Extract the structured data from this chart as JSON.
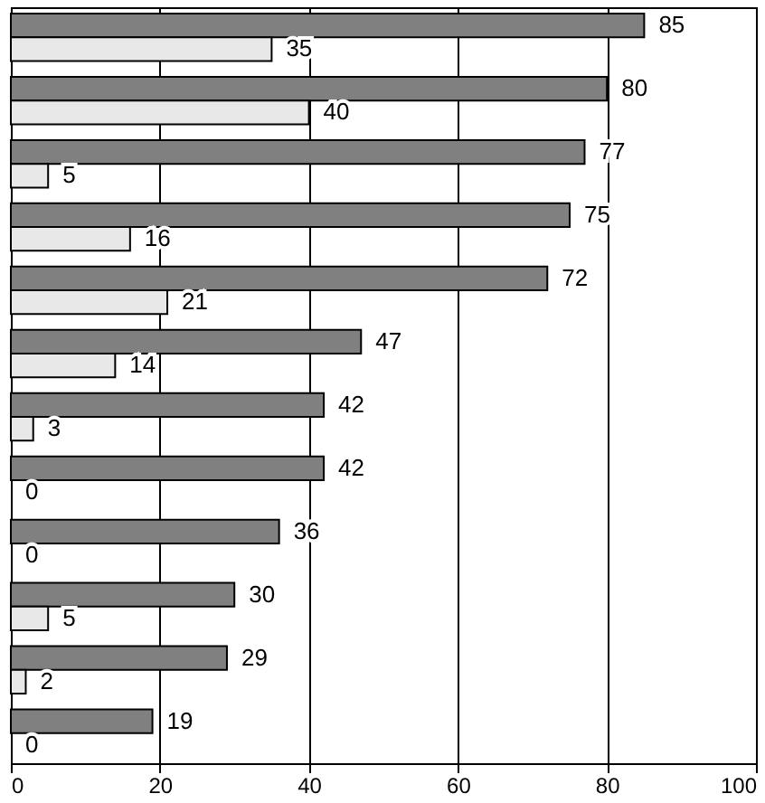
{
  "chart_data": {
    "type": "bar",
    "orientation": "horizontal",
    "categories": [
      null,
      null,
      null,
      null,
      null,
      null,
      null,
      null,
      null,
      null,
      null,
      null
    ],
    "series": [
      {
        "color": "#808080",
        "values": [
          85,
          80,
          77,
          75,
          72,
          47,
          42,
          42,
          36,
          30,
          29,
          19
        ]
      },
      {
        "color": "#e8e8e8",
        "values": [
          35,
          40,
          5,
          16,
          21,
          14,
          3,
          0,
          0,
          5,
          2,
          0
        ]
      }
    ],
    "xlim": [
      0,
      100
    ],
    "xticks": [
      0,
      20,
      40,
      60,
      80,
      100
    ],
    "grid": "x",
    "data_labels": true
  }
}
